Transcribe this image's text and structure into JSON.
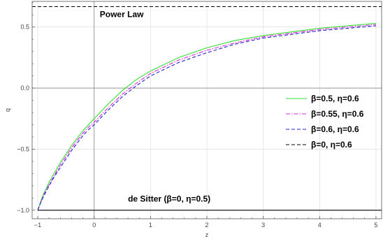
{
  "chart_data": {
    "type": "line",
    "xlabel": "z",
    "ylabel": "q",
    "xlim": [
      -1.1,
      5.1
    ],
    "ylim": [
      -1.07,
      0.71
    ],
    "x_ticks": [
      -1,
      0,
      1,
      2,
      3,
      4,
      5
    ],
    "y_ticks": [
      -1.0,
      -0.5,
      0.0,
      0.5
    ],
    "y_tick_labels": [
      "−1.0",
      "−0.5",
      "0.0",
      "0.5"
    ],
    "x_tick_labels": [
      "−1",
      "0",
      "1",
      "2",
      "3",
      "4",
      "5"
    ],
    "grid": true,
    "legend_position": "right",
    "series": [
      {
        "name": "β=0.5, η=0.6",
        "color": "#33dd33",
        "dash": "solid",
        "x": [
          -1,
          -0.95,
          -0.9,
          -0.8,
          -0.7,
          -0.6,
          -0.5,
          -0.4,
          -0.3,
          -0.2,
          -0.1,
          0,
          0.25,
          0.5,
          0.75,
          1,
          1.5,
          2,
          2.5,
          3,
          3.5,
          4,
          4.5,
          5
        ],
        "y": [
          -1.0,
          -0.93,
          -0.87,
          -0.77,
          -0.69,
          -0.61,
          -0.54,
          -0.47,
          -0.41,
          -0.35,
          -0.3,
          -0.25,
          -0.13,
          -0.02,
          0.07,
          0.14,
          0.25,
          0.33,
          0.39,
          0.43,
          0.46,
          0.49,
          0.51,
          0.53
        ]
      },
      {
        "name": "β=0.55, η=0.6",
        "color": "#dd22dd",
        "dash": "dashdot",
        "x": [
          -1,
          -0.95,
          -0.9,
          -0.8,
          -0.7,
          -0.6,
          -0.5,
          -0.4,
          -0.3,
          -0.2,
          -0.1,
          0,
          0.25,
          0.5,
          0.75,
          1,
          1.5,
          2,
          2.5,
          3,
          3.5,
          4,
          4.5,
          5
        ],
        "y": [
          -1.0,
          -0.94,
          -0.88,
          -0.79,
          -0.71,
          -0.63,
          -0.56,
          -0.49,
          -0.43,
          -0.37,
          -0.32,
          -0.28,
          -0.16,
          -0.05,
          0.04,
          0.12,
          0.23,
          0.31,
          0.37,
          0.42,
          0.45,
          0.48,
          0.5,
          0.52
        ]
      },
      {
        "name": "β=0.6, η=0.6",
        "color": "#2222cc",
        "dash": "dashed",
        "x": [
          -1,
          -0.95,
          -0.9,
          -0.8,
          -0.7,
          -0.6,
          -0.5,
          -0.4,
          -0.3,
          -0.2,
          -0.1,
          0,
          0.25,
          0.5,
          0.75,
          1,
          1.5,
          2,
          2.5,
          3,
          3.5,
          4,
          4.5,
          5
        ],
        "y": [
          -1.0,
          -0.94,
          -0.89,
          -0.8,
          -0.72,
          -0.65,
          -0.58,
          -0.51,
          -0.45,
          -0.39,
          -0.34,
          -0.3,
          -0.18,
          -0.07,
          0.02,
          0.1,
          0.21,
          0.29,
          0.36,
          0.41,
          0.44,
          0.47,
          0.49,
          0.51
        ]
      },
      {
        "name": "β=0, η=0.6",
        "color": "#000000",
        "dash": "dashed",
        "x": [
          -1.1,
          5.1
        ],
        "y": [
          0.667,
          0.667
        ]
      },
      {
        "name": "",
        "color": "#000000",
        "dash": "solid",
        "x": [
          -1,
          5.1
        ],
        "y": [
          -1.0,
          -1.0
        ]
      }
    ],
    "annotations": [
      {
        "text": "Power   Law",
        "x": 0.1,
        "y": 0.58
      },
      {
        "text": "de Sitter (β=0, η=0.5)",
        "x": 0.6,
        "y": -0.93
      }
    ]
  }
}
